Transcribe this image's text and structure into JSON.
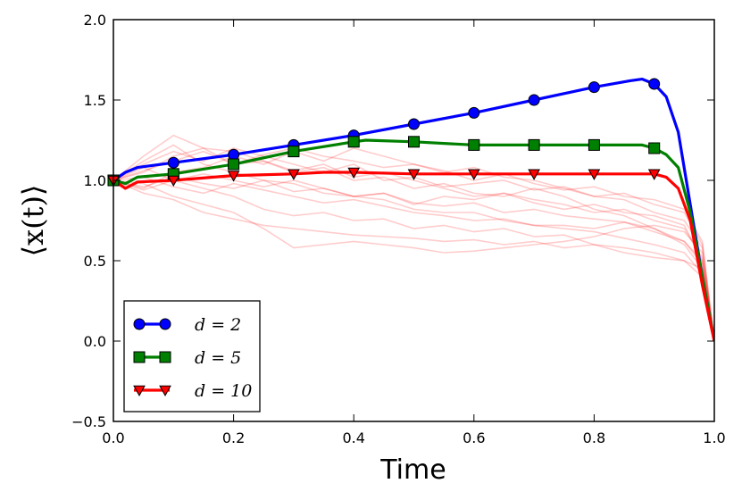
{
  "chart_data": {
    "type": "line",
    "xlabel": "Time",
    "ylabel": "⟨x(t)⟩",
    "xlim": [
      0.0,
      1.0
    ],
    "ylim": [
      -0.5,
      2.0
    ],
    "xticks": [
      "0.0",
      "0.2",
      "0.4",
      "0.6",
      "0.8",
      "1.0"
    ],
    "yticks": [
      "−0.5",
      "0.0",
      "0.5",
      "1.0",
      "1.5",
      "2.0"
    ],
    "xtick_values": [
      0.0,
      0.2,
      0.4,
      0.6,
      0.8,
      1.0
    ],
    "ytick_values": [
      -0.5,
      0.0,
      0.5,
      1.0,
      1.5,
      2.0
    ],
    "grid": false,
    "legend_position": "lower-left",
    "series": [
      {
        "name": "d = 2",
        "color": "#0000ff",
        "marker": "circle",
        "x": [
          0.0,
          0.02,
          0.04,
          0.1,
          0.2,
          0.3,
          0.4,
          0.5,
          0.6,
          0.7,
          0.8,
          0.86,
          0.88,
          0.9,
          0.92,
          0.94,
          0.96,
          0.98,
          1.0
        ],
        "y": [
          1.0,
          1.05,
          1.08,
          1.11,
          1.16,
          1.22,
          1.28,
          1.35,
          1.42,
          1.5,
          1.58,
          1.62,
          1.63,
          1.6,
          1.52,
          1.3,
          0.85,
          0.4,
          0.0
        ],
        "marker_x": [
          0.0,
          0.1,
          0.2,
          0.3,
          0.4,
          0.5,
          0.6,
          0.7,
          0.8,
          0.9
        ]
      },
      {
        "name": "d = 5",
        "color": "#008000",
        "marker": "square",
        "x": [
          0.0,
          0.02,
          0.04,
          0.1,
          0.2,
          0.3,
          0.4,
          0.42,
          0.5,
          0.6,
          0.7,
          0.8,
          0.88,
          0.9,
          0.92,
          0.94,
          0.96,
          0.98,
          1.0
        ],
        "y": [
          1.0,
          0.98,
          1.02,
          1.04,
          1.1,
          1.18,
          1.24,
          1.25,
          1.24,
          1.22,
          1.22,
          1.22,
          1.22,
          1.2,
          1.16,
          1.08,
          0.8,
          0.4,
          0.0
        ],
        "marker_x": [
          0.0,
          0.1,
          0.2,
          0.3,
          0.4,
          0.5,
          0.6,
          0.7,
          0.8,
          0.9
        ]
      },
      {
        "name": "d = 10",
        "color": "#ff0000",
        "marker": "triangle-down",
        "x": [
          0.0,
          0.02,
          0.04,
          0.1,
          0.2,
          0.3,
          0.35,
          0.4,
          0.5,
          0.6,
          0.7,
          0.8,
          0.9,
          0.92,
          0.94,
          0.96,
          0.98,
          1.0
        ],
        "y": [
          1.0,
          0.95,
          0.99,
          1.0,
          1.03,
          1.04,
          1.05,
          1.05,
          1.04,
          1.04,
          1.04,
          1.04,
          1.04,
          1.02,
          0.95,
          0.75,
          0.35,
          0.0
        ],
        "marker_x": [
          0.0,
          0.1,
          0.2,
          0.3,
          0.4,
          0.5,
          0.6,
          0.7,
          0.8,
          0.9
        ]
      }
    ],
    "background_paths": {
      "color": "#ff0000",
      "opacity": 0.2,
      "x": [
        0.0,
        0.05,
        0.1,
        0.15,
        0.2,
        0.25,
        0.3,
        0.35,
        0.4,
        0.45,
        0.5,
        0.55,
        0.6,
        0.65,
        0.7,
        0.75,
        0.8,
        0.85,
        0.9,
        0.95,
        0.98,
        1.0
      ],
      "paths": [
        [
          1.0,
          1.12,
          1.22,
          1.1,
          1.05,
          1.0,
          0.93,
          0.95,
          0.9,
          0.92,
          0.85,
          0.9,
          0.88,
          0.92,
          0.86,
          0.82,
          0.85,
          0.8,
          0.78,
          0.72,
          0.5,
          0.0
        ],
        [
          1.0,
          1.05,
          1.15,
          1.2,
          1.1,
          1.12,
          1.05,
          1.08,
          1.0,
          1.02,
          0.95,
          0.98,
          0.92,
          0.9,
          0.95,
          0.9,
          0.82,
          0.78,
          0.7,
          0.6,
          0.45,
          0.0
        ],
        [
          1.0,
          0.95,
          1.05,
          1.08,
          1.15,
          1.1,
          1.18,
          1.12,
          1.2,
          1.15,
          1.1,
          1.05,
          1.08,
          1.02,
          1.0,
          0.95,
          0.9,
          0.92,
          0.85,
          0.8,
          0.6,
          0.0
        ],
        [
          1.0,
          0.92,
          0.88,
          0.8,
          0.76,
          0.72,
          0.7,
          0.68,
          0.66,
          0.65,
          0.64,
          0.62,
          0.63,
          0.6,
          0.62,
          0.58,
          0.6,
          0.55,
          0.52,
          0.5,
          0.45,
          0.0
        ],
        [
          1.0,
          1.08,
          1.0,
          0.95,
          0.9,
          0.82,
          0.78,
          0.8,
          0.75,
          0.76,
          0.7,
          0.72,
          0.68,
          0.7,
          0.65,
          0.66,
          0.6,
          0.58,
          0.55,
          0.5,
          0.4,
          0.0
        ],
        [
          1.0,
          0.98,
          0.9,
          0.85,
          0.8,
          0.7,
          0.58,
          0.6,
          0.62,
          0.6,
          0.58,
          0.55,
          0.56,
          0.58,
          0.6,
          0.62,
          0.65,
          0.7,
          0.72,
          0.68,
          0.55,
          0.0
        ],
        [
          1.0,
          1.1,
          1.18,
          1.12,
          1.2,
          1.15,
          1.1,
          1.05,
          1.1,
          1.0,
          1.02,
          0.96,
          0.98,
          1.0,
          0.94,
          0.96,
          0.9,
          0.88,
          0.8,
          0.75,
          0.58,
          0.0
        ],
        [
          1.0,
          0.96,
          1.02,
          0.98,
          0.95,
          1.0,
          0.98,
          0.92,
          0.9,
          0.88,
          0.82,
          0.8,
          0.8,
          0.75,
          0.72,
          0.72,
          0.7,
          0.74,
          0.68,
          0.62,
          0.48,
          0.0
        ],
        [
          1.0,
          1.15,
          1.28,
          1.2,
          1.18,
          1.12,
          1.06,
          1.1,
          1.02,
          1.05,
          1.0,
          0.95,
          0.9,
          0.92,
          0.88,
          0.85,
          0.8,
          0.82,
          0.75,
          0.7,
          0.52,
          0.0
        ],
        [
          1.0,
          1.02,
          0.96,
          0.92,
          0.98,
          0.94,
          0.9,
          0.86,
          0.88,
          0.84,
          0.8,
          0.78,
          0.75,
          0.76,
          0.72,
          0.7,
          0.68,
          0.64,
          0.6,
          0.55,
          0.42,
          0.0
        ],
        [
          1.0,
          1.06,
          1.12,
          1.18,
          1.1,
          1.16,
          1.2,
          1.15,
          1.12,
          1.08,
          1.1,
          1.06,
          1.0,
          1.04,
          0.98,
          0.94,
          0.96,
          0.9,
          0.88,
          0.82,
          0.62,
          0.0
        ],
        [
          1.0,
          0.94,
          1.0,
          1.04,
          1.0,
          0.96,
          1.0,
          0.95,
          0.9,
          0.92,
          0.86,
          0.84,
          0.86,
          0.8,
          0.82,
          0.78,
          0.76,
          0.74,
          0.7,
          0.62,
          0.5,
          0.0
        ]
      ]
    }
  }
}
